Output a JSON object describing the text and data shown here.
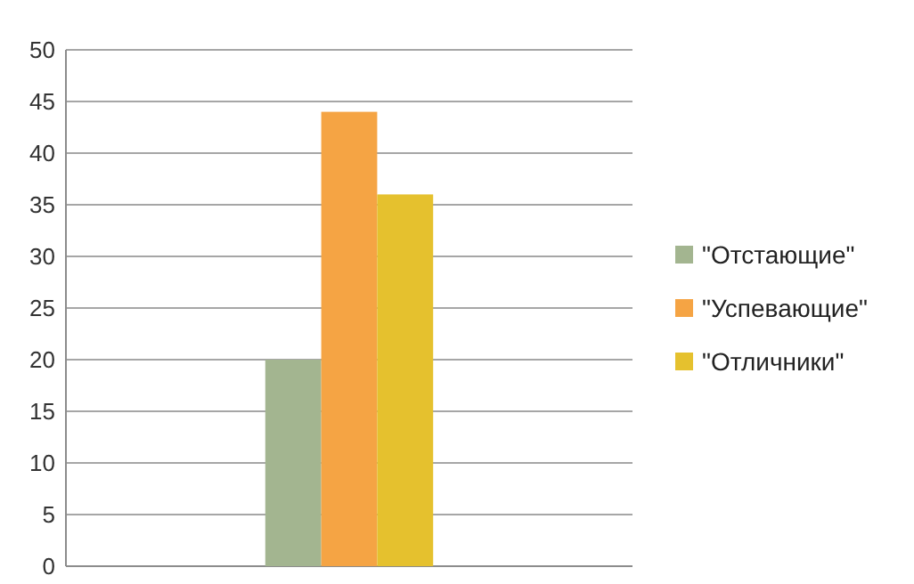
{
  "chart_data": {
    "type": "bar",
    "categories": [
      null
    ],
    "series": [
      {
        "name": "\"Отстающие\"",
        "color": "#a3b590",
        "values": [
          20
        ]
      },
      {
        "name": "\"Успевающие\"",
        "color": "#f5a444",
        "values": [
          44
        ]
      },
      {
        "name": "\"Отличники\"",
        "color": "#e5c12e",
        "values": [
          36
        ]
      }
    ],
    "ylim": [
      0,
      50
    ],
    "yticks": [
      0,
      5,
      10,
      15,
      20,
      25,
      30,
      35,
      40,
      45,
      50
    ],
    "grid": "y",
    "legend": "right"
  }
}
